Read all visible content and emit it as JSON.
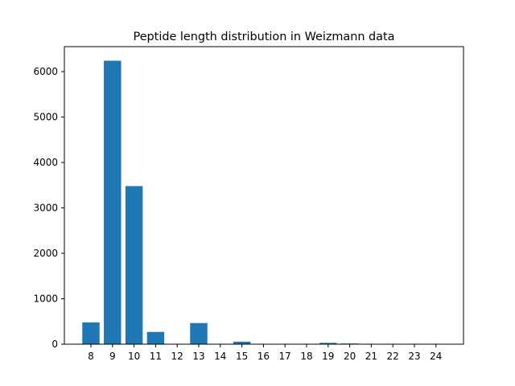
{
  "chart_data": {
    "type": "bar",
    "title": "Peptide length distribution in Weizmann data",
    "xlabel": "",
    "ylabel": "",
    "categories": [
      "8",
      "9",
      "10",
      "11",
      "12",
      "13",
      "14",
      "15",
      "16",
      "17",
      "18",
      "19",
      "20",
      "21",
      "22",
      "23",
      "24"
    ],
    "values": [
      480,
      6240,
      3480,
      270,
      0,
      465,
      0,
      55,
      0,
      0,
      0,
      30,
      15,
      0,
      0,
      0,
      0
    ],
    "ylim": [
      0,
      6550
    ],
    "yticks": [
      0,
      1000,
      2000,
      3000,
      4000,
      5000,
      6000
    ],
    "grid": false,
    "bar_color": "#1f77b4"
  }
}
